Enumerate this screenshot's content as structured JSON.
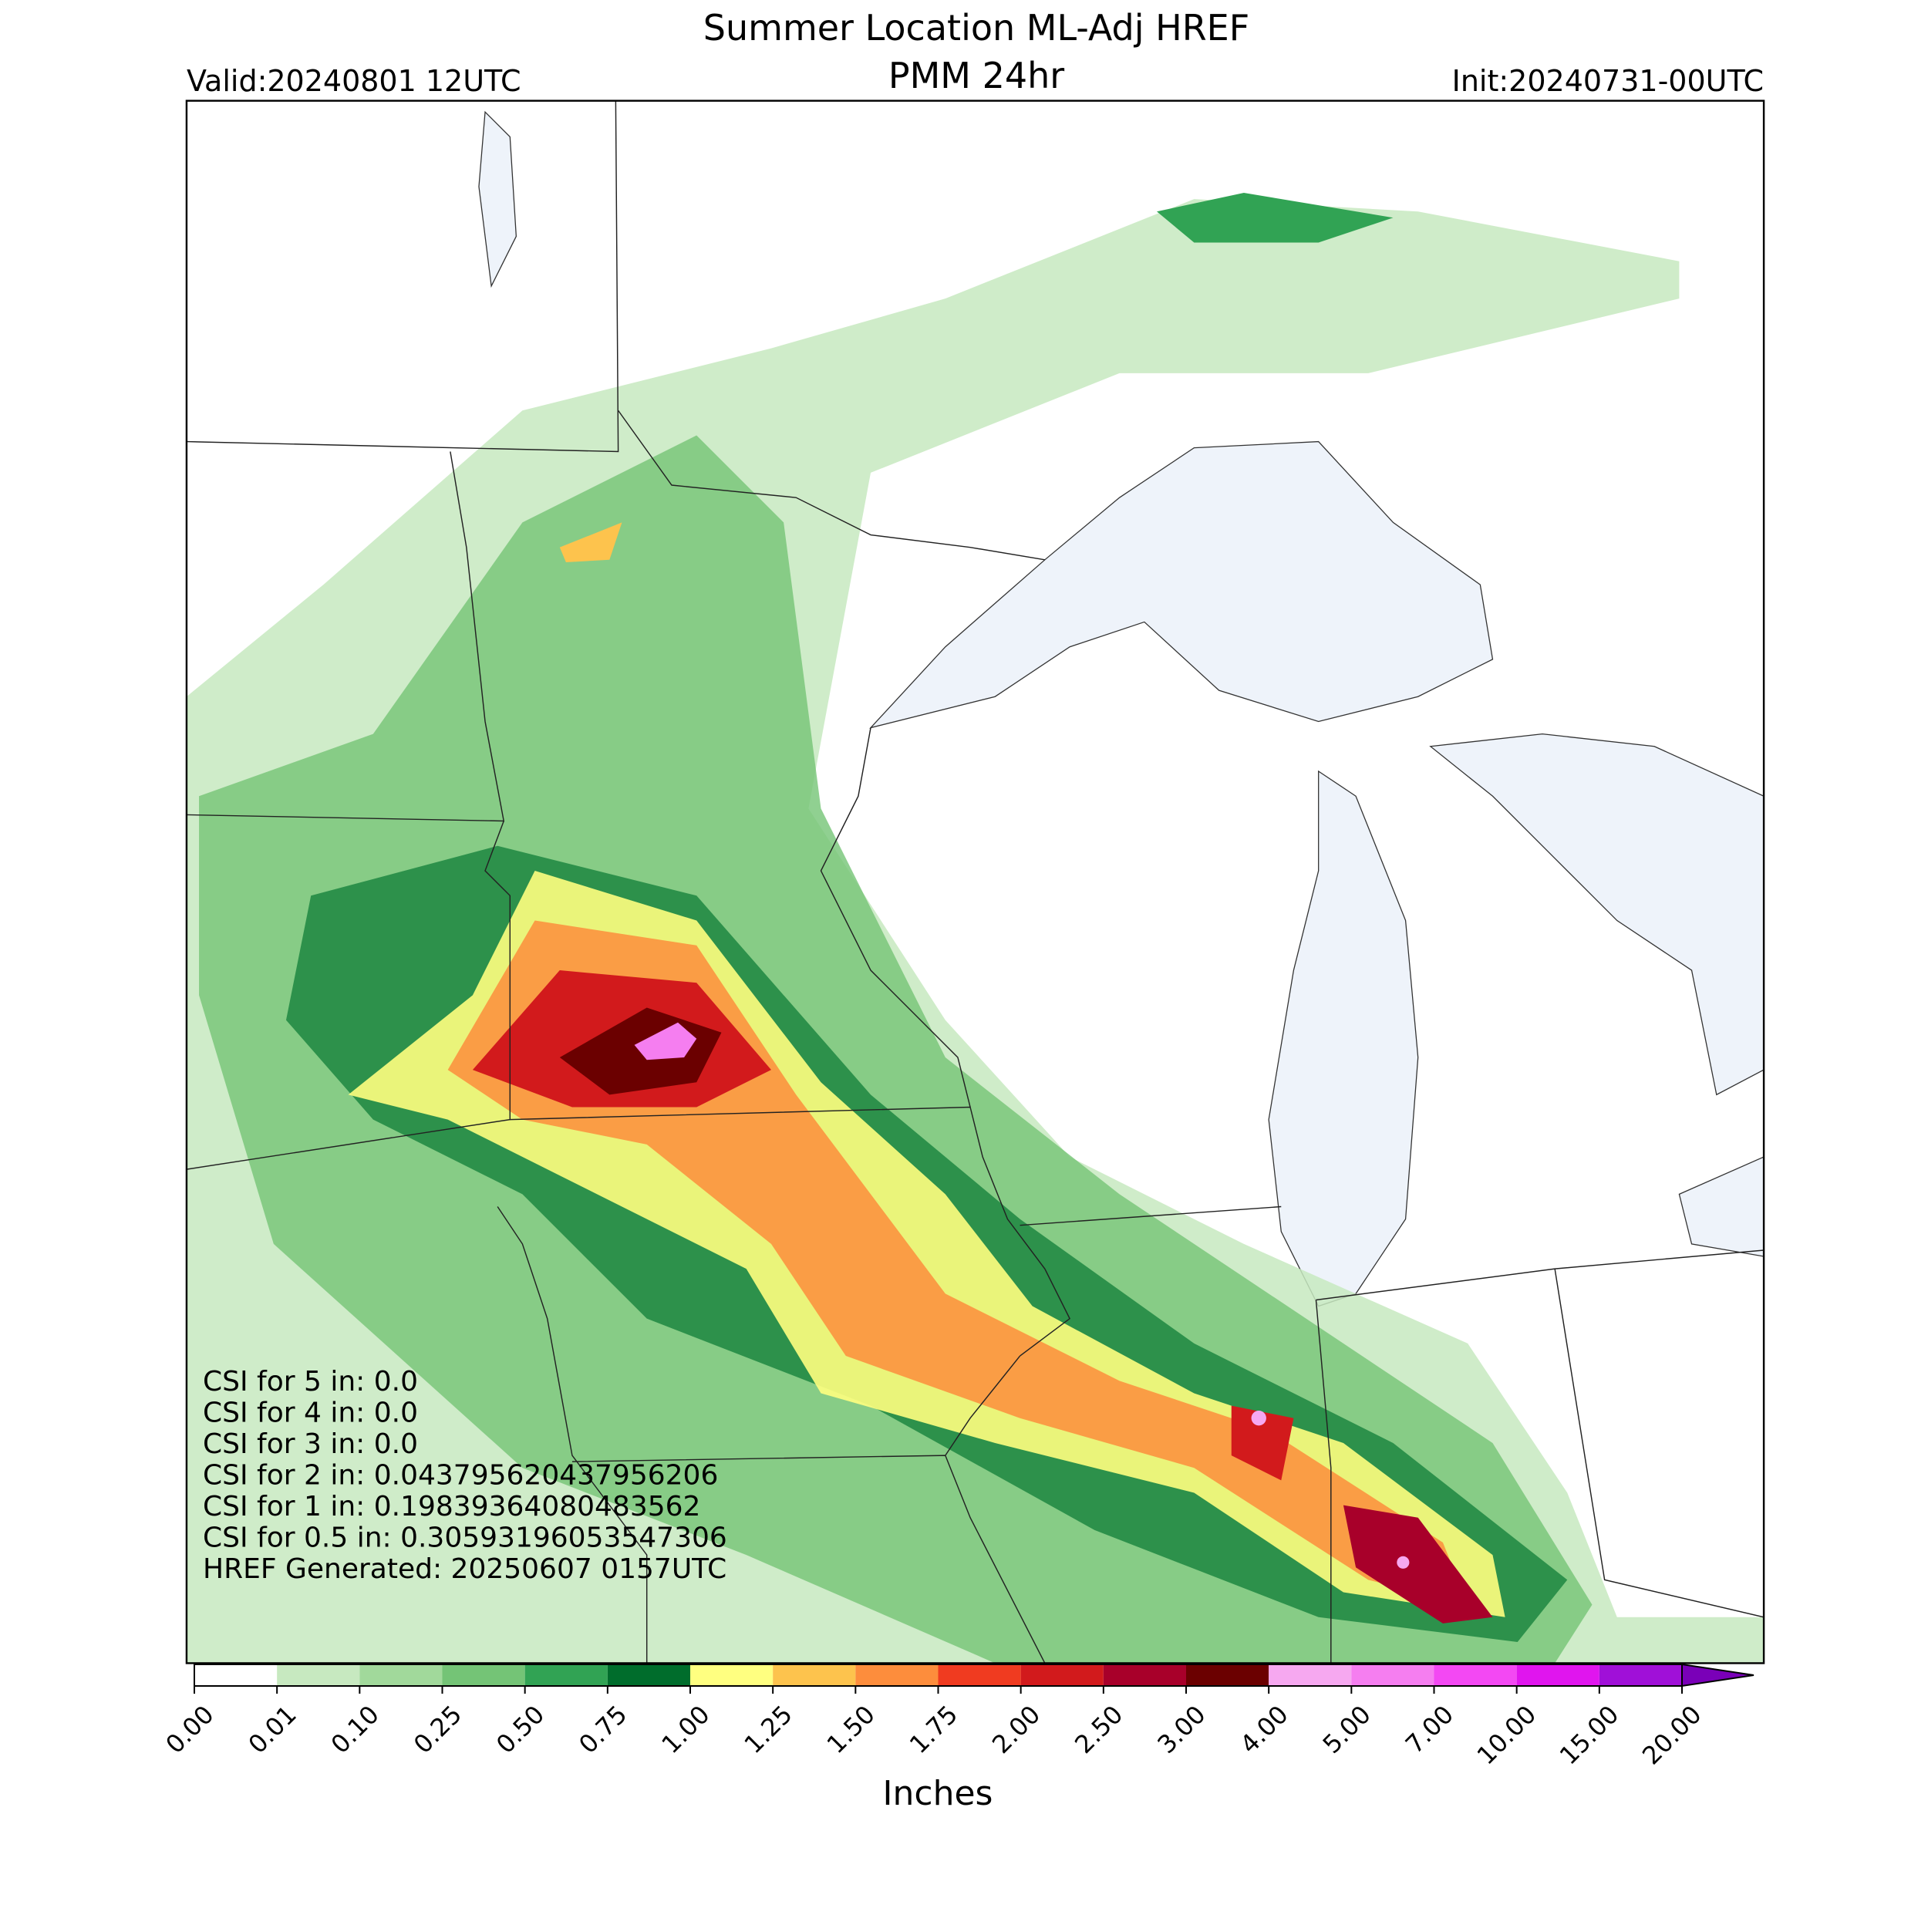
{
  "header": {
    "title": "Summer Location ML-Adj HREF",
    "subtitle": "PMM 24hr",
    "valid": "Valid:20240801 12UTC",
    "init": "Init:20240731-00UTC"
  },
  "stats": [
    "CSI for 5 in: 0.0",
    "CSI for 4 in: 0.0",
    "CSI for 3 in: 0.0",
    "CSI for 2 in: 0.043795620437956206",
    "CSI for 1 in: 0.19839364080483562",
    "CSI for 0.5 in: 0.30593196053547306",
    "HREF Generated: 20250607 0157UTC"
  ],
  "colorbar": {
    "label": "Inches",
    "ticks": [
      {
        "value": 0,
        "label": "0.00"
      },
      {
        "value": 0.01,
        "label": "0.01"
      },
      {
        "value": 0.1,
        "label": "0.10"
      },
      {
        "value": 0.25,
        "label": "0.25"
      },
      {
        "value": 0.5,
        "label": "0.50"
      },
      {
        "value": 0.75,
        "label": "0.75"
      },
      {
        "value": 1,
        "label": "1.00"
      },
      {
        "value": 1.25,
        "label": "1.25"
      },
      {
        "value": 1.5,
        "label": "1.50"
      },
      {
        "value": 1.75,
        "label": "1.75"
      },
      {
        "value": 2,
        "label": "2.00"
      },
      {
        "value": 2.5,
        "label": "2.50"
      },
      {
        "value": 3,
        "label": "3.00"
      },
      {
        "value": 4,
        "label": "4.00"
      },
      {
        "value": 5,
        "label": "5.00"
      },
      {
        "value": 7,
        "label": "7.00"
      },
      {
        "value": 10,
        "label": "10.00"
      },
      {
        "value": 15,
        "label": "15.00"
      },
      {
        "value": 20,
        "label": "20.00"
      }
    ],
    "colors": [
      "#ffffff",
      "#c7e9c0",
      "#a1d99b",
      "#74c476",
      "#31a354",
      "#006d2c",
      "#ffff80",
      "#fdc34d",
      "#fd8d3c",
      "#f03b20",
      "#d21a1c",
      "#a8002a",
      "#6b0000",
      "#f6a8f0",
      "#f57ef0",
      "#f348f3",
      "#e015ee",
      "#a010d8"
    ],
    "extend_color": "#7a00b8"
  }
}
